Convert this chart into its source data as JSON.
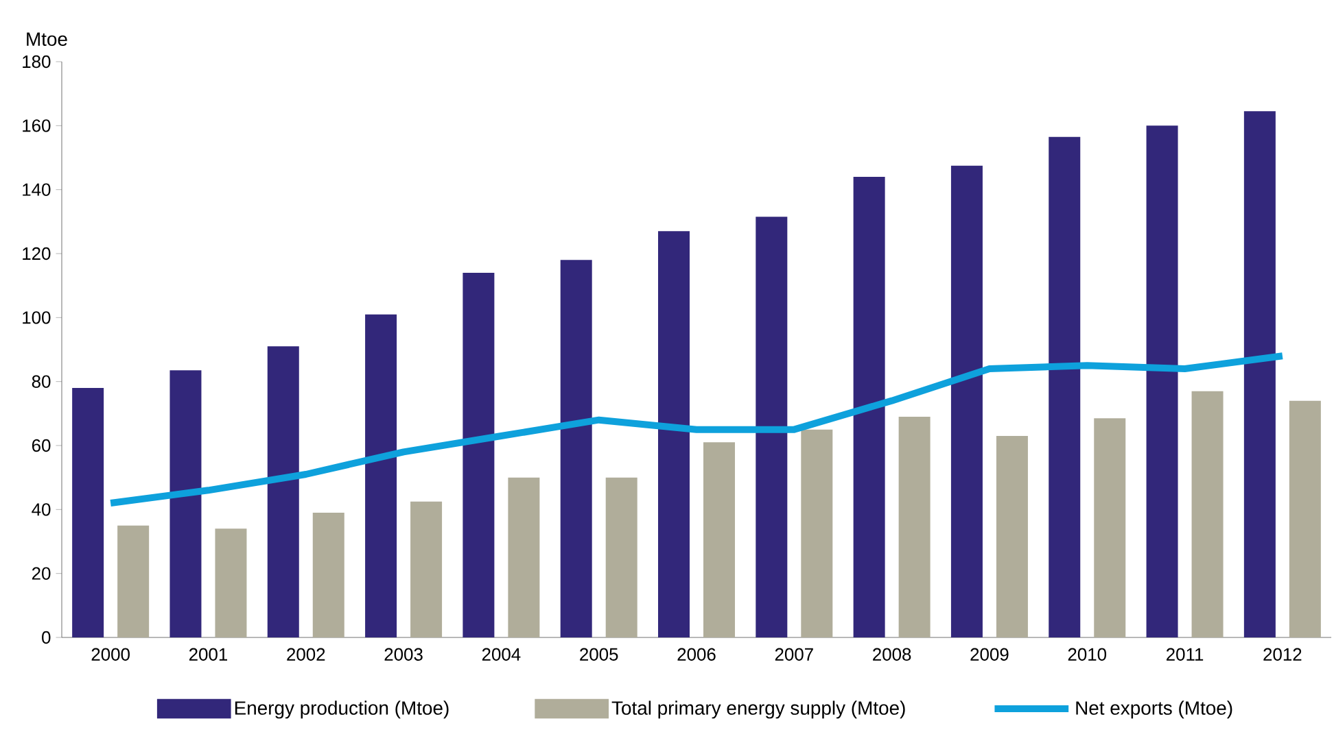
{
  "chart_data": {
    "type": "bar",
    "ylabel": "Mtoe",
    "categories": [
      "2000",
      "2001",
      "2002",
      "2003",
      "2004",
      "2005",
      "2006",
      "2007",
      "2008",
      "2009",
      "2010",
      "2011",
      "2012"
    ],
    "series": [
      {
        "name": "Energy production (Mtoe)",
        "color": "#32277a",
        "values": [
          78,
          83.5,
          91,
          101,
          114,
          118,
          127,
          131.5,
          144,
          147.5,
          156.5,
          160,
          164.5
        ]
      },
      {
        "name": "Total primary energy supply (Mtoe)",
        "color": "#b0ad9a",
        "values": [
          35,
          34,
          39,
          42.5,
          50,
          50,
          61,
          65,
          69,
          63,
          68.5,
          77,
          74
        ]
      },
      {
        "name": "Net exports (Mtoe)",
        "type": "line",
        "color": "#0ea1dc",
        "values": [
          42,
          46,
          51,
          58,
          63,
          68,
          65,
          65,
          74,
          84,
          85,
          84,
          88
        ]
      }
    ],
    "ylim": [
      0,
      180
    ],
    "yticks": [
      0,
      20,
      40,
      60,
      80,
      100,
      120,
      140,
      160,
      180
    ],
    "legend": "bottom"
  }
}
